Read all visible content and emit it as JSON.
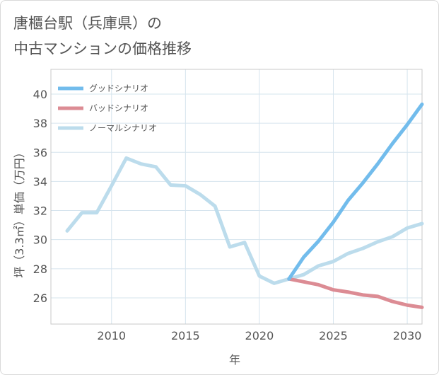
{
  "title_line1": "唐櫃台駅（兵庫県）の",
  "title_line2": "中古マンションの価格推移",
  "chart_data": {
    "type": "line",
    "xlabel": "年",
    "ylabel": "坪（3.3㎡）単価（万円）",
    "xlim": [
      2005.9,
      2031
    ],
    "ylim": [
      24.2,
      41.7
    ],
    "xticks": [
      2010,
      2015,
      2020,
      2025,
      2030
    ],
    "yticks": [
      26,
      28,
      30,
      32,
      34,
      36,
      38,
      40
    ],
    "grid": true,
    "legend_position": "top-left",
    "series": [
      {
        "name": "グッドシナリオ",
        "color": "#72bcec",
        "x": [
          2022,
          2023,
          2024,
          2025,
          2026,
          2027,
          2028,
          2029,
          2030,
          2031
        ],
        "y": [
          27.3,
          28.8,
          29.9,
          31.2,
          32.7,
          33.9,
          35.2,
          36.6,
          37.9,
          39.3
        ]
      },
      {
        "name": "バッドシナリオ",
        "color": "#dc8c94",
        "x": [
          2022,
          2023,
          2024,
          2025,
          2026,
          2027,
          2028,
          2029,
          2030,
          2031
        ],
        "y": [
          27.3,
          27.1,
          26.9,
          26.55,
          26.4,
          26.2,
          26.1,
          25.75,
          25.5,
          25.35
        ]
      },
      {
        "name": "ノーマルシナリオ",
        "color": "#bcdcec",
        "x": [
          2007,
          2008,
          2009,
          2010,
          2011,
          2012,
          2013,
          2014,
          2015,
          2016,
          2017,
          2018,
          2019,
          2020,
          2021,
          2022,
          2023,
          2024,
          2025,
          2026,
          2027,
          2028,
          2029,
          2030,
          2031
        ],
        "y": [
          30.6,
          31.85,
          31.85,
          33.7,
          35.6,
          35.2,
          35.0,
          33.75,
          33.7,
          33.1,
          32.3,
          29.5,
          29.8,
          27.5,
          27.0,
          27.3,
          27.6,
          28.2,
          28.5,
          29.05,
          29.4,
          29.85,
          30.2,
          30.8,
          31.1
        ]
      }
    ]
  }
}
